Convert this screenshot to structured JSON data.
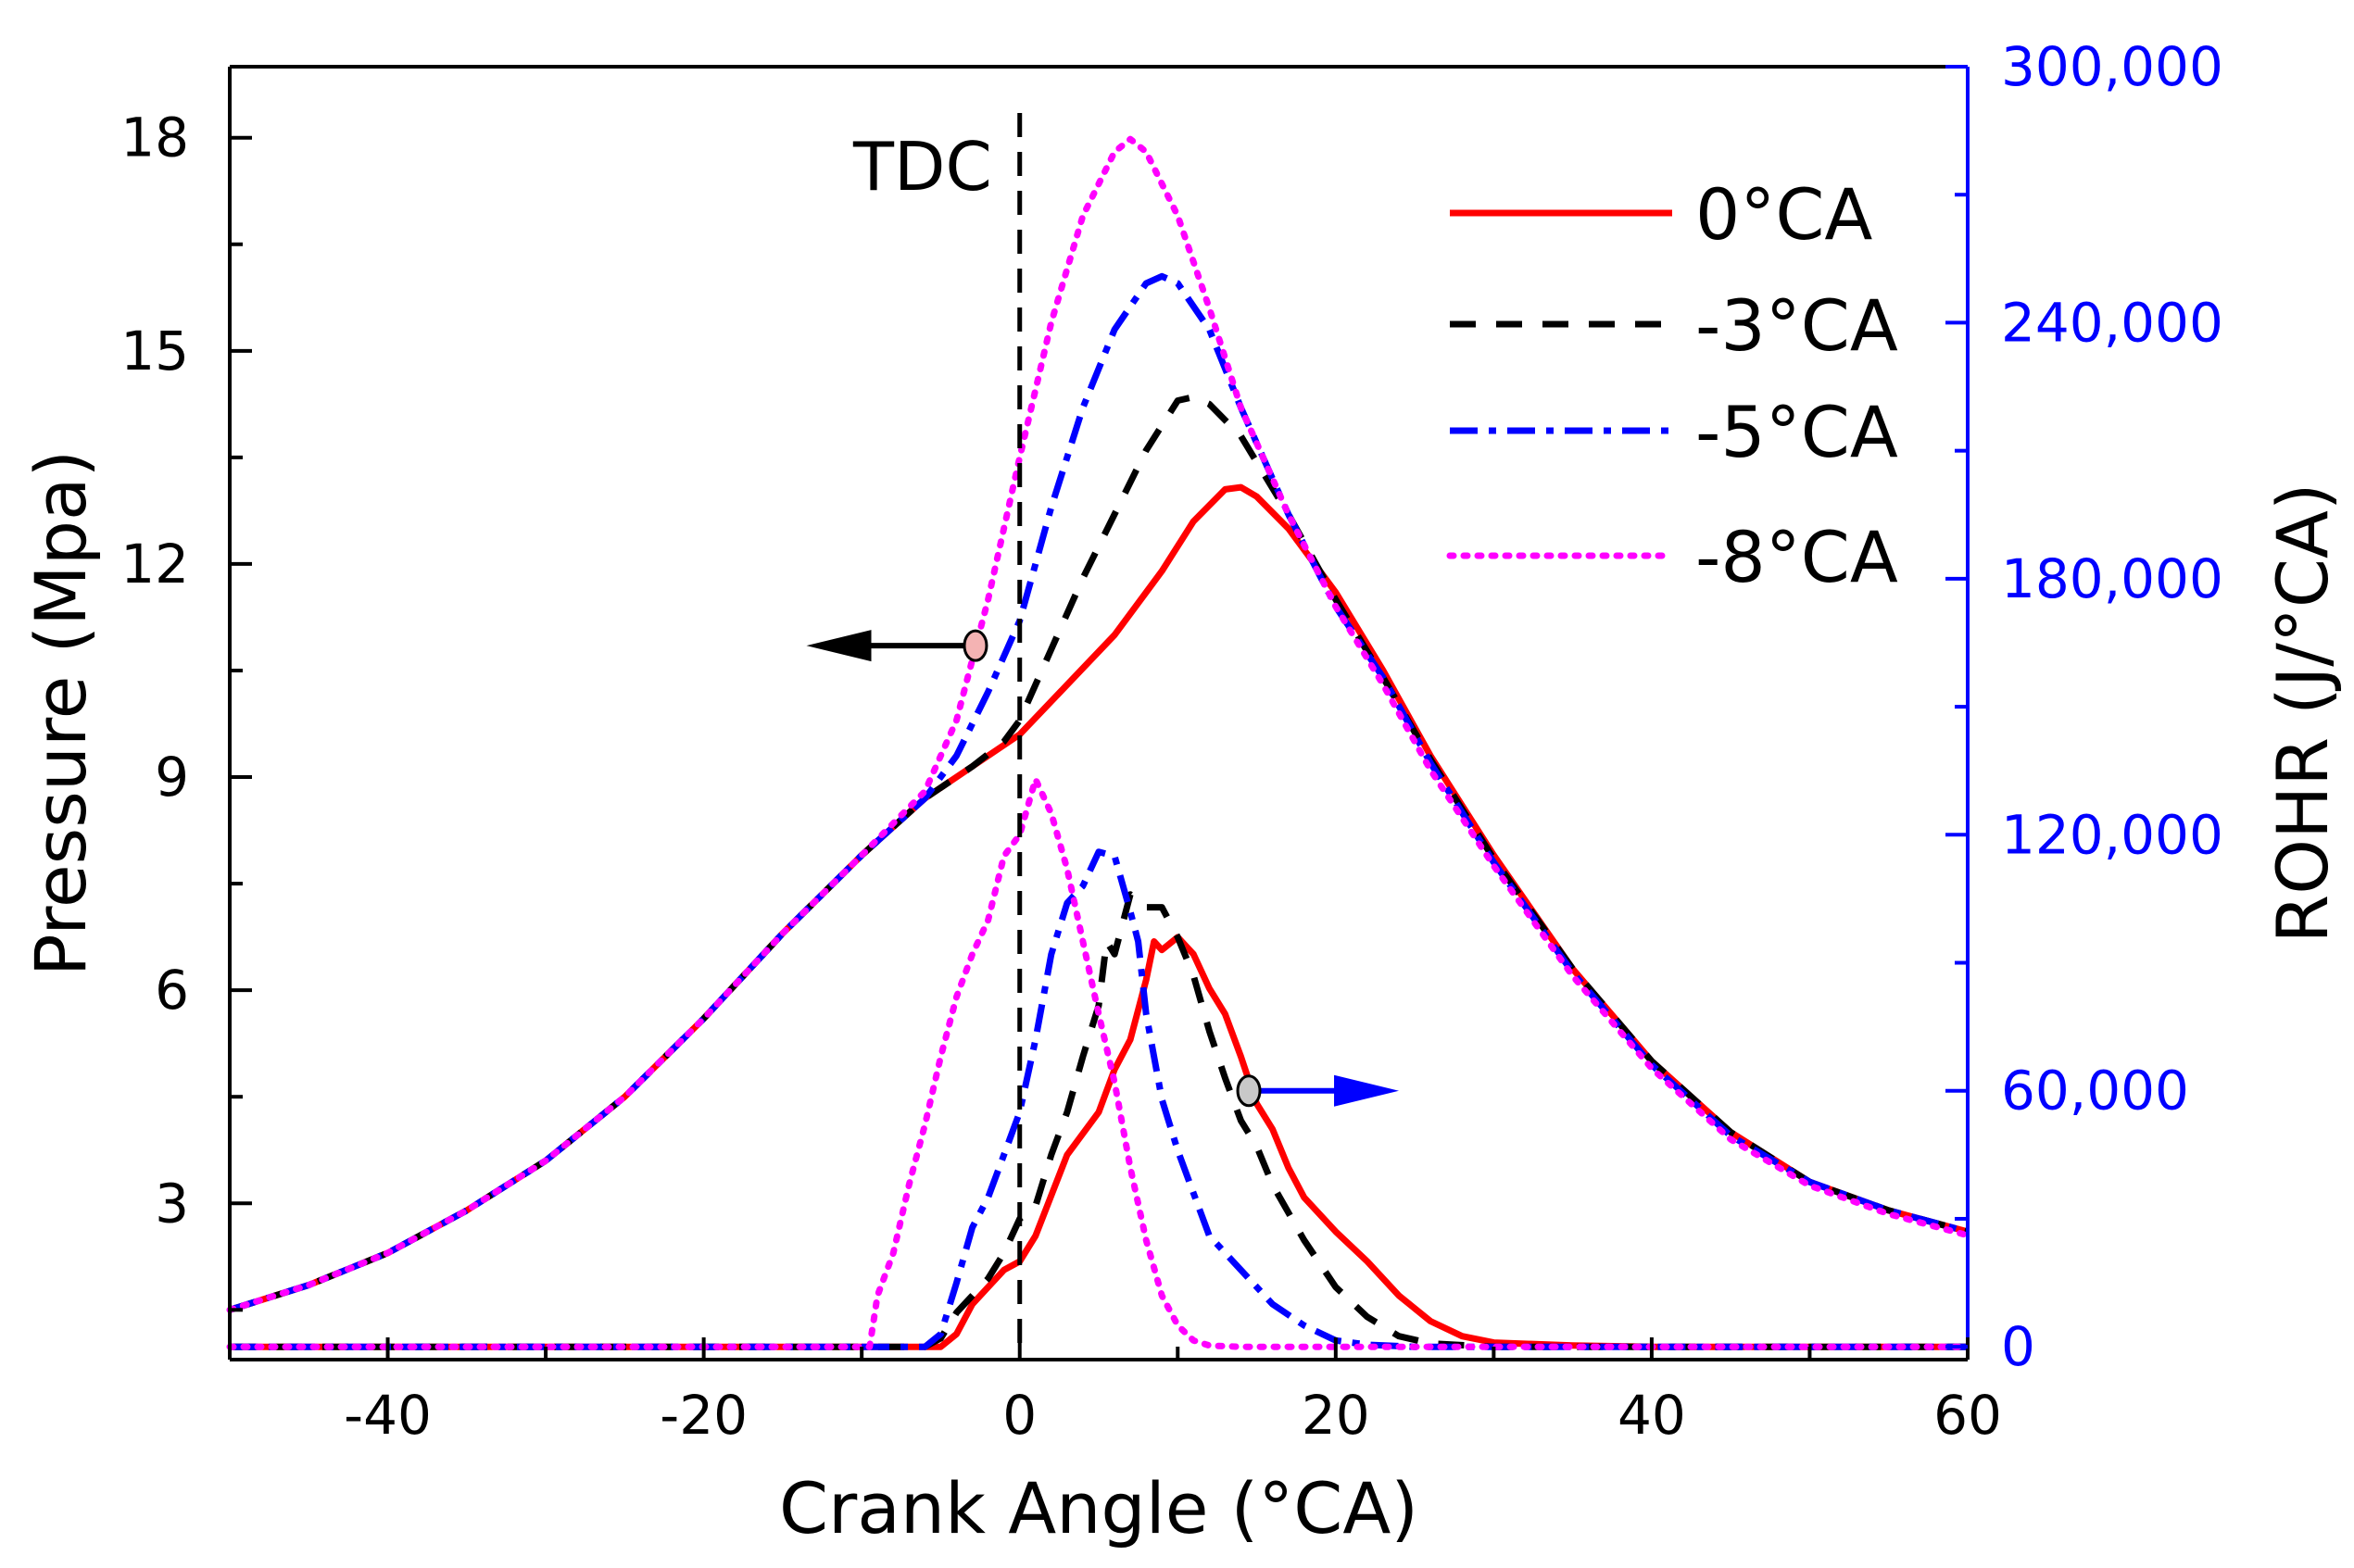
{
  "chart_data": {
    "type": "line",
    "xlabel": "Crank Angle (°CA)",
    "ylabel_left": "Pressure (Mpa)",
    "ylabel_right": "ROHR (J/°CA)",
    "xlim": [
      -50,
      60
    ],
    "ylim_left": [
      0.8,
      19
    ],
    "ylim_right": [
      -3000,
      300000
    ],
    "x_ticks": [
      -40,
      -20,
      0,
      20,
      40,
      60
    ],
    "y_left_ticks": [
      3,
      6,
      9,
      12,
      15,
      18
    ],
    "y_right_ticks": [
      0,
      60000,
      120000,
      180000,
      240000,
      300000
    ],
    "y_right_tick_labels": [
      "0",
      "60,000",
      "120,000",
      "180,000",
      "240,000",
      "300,000"
    ],
    "annotation_tdc": {
      "label": "TDC",
      "x": 0
    },
    "legend_position": "top-right",
    "colors": {
      "s0": "#ff0000",
      "s3": "#000000",
      "s5": "#0000ff",
      "s8": "#ff00ff",
      "right_axis": "#0000ff"
    },
    "series": [
      {
        "name": "0°CA",
        "style": "solid",
        "color": "#ff0000",
        "pressure": [
          [
            -50,
            1.5
          ],
          [
            -45,
            1.85
          ],
          [
            -40,
            2.3
          ],
          [
            -35,
            2.9
          ],
          [
            -30,
            3.6
          ],
          [
            -25,
            4.5
          ],
          [
            -20,
            5.6
          ],
          [
            -15,
            6.8
          ],
          [
            -10,
            7.9
          ],
          [
            -6,
            8.7
          ],
          [
            -3,
            9.15
          ],
          [
            0,
            9.6
          ],
          [
            3,
            10.3
          ],
          [
            6,
            11.0
          ],
          [
            9,
            11.9
          ],
          [
            11,
            12.6
          ],
          [
            13,
            13.05
          ],
          [
            14,
            13.08
          ],
          [
            15,
            12.95
          ],
          [
            17,
            12.5
          ],
          [
            20,
            11.6
          ],
          [
            23,
            10.5
          ],
          [
            26,
            9.3
          ],
          [
            30,
            7.9
          ],
          [
            35,
            6.3
          ],
          [
            40,
            5.0
          ],
          [
            45,
            4.0
          ],
          [
            50,
            3.3
          ],
          [
            55,
            2.9
          ],
          [
            60,
            2.6
          ]
        ],
        "rohr": [
          [
            -50,
            0
          ],
          [
            -5,
            0
          ],
          [
            -4,
            3000
          ],
          [
            -3,
            10000
          ],
          [
            -1,
            18000
          ],
          [
            0,
            20000
          ],
          [
            1,
            26000
          ],
          [
            3,
            45000
          ],
          [
            5,
            55000
          ],
          [
            6,
            65000
          ],
          [
            7,
            72000
          ],
          [
            8,
            86000
          ],
          [
            8.5,
            95000
          ],
          [
            9,
            93000
          ],
          [
            10,
            96000
          ],
          [
            11,
            92000
          ],
          [
            12,
            84000
          ],
          [
            13,
            78000
          ],
          [
            14,
            68000
          ],
          [
            15,
            57000
          ],
          [
            16,
            51000
          ],
          [
            17,
            42000
          ],
          [
            18,
            35000
          ],
          [
            20,
            27000
          ],
          [
            22,
            20000
          ],
          [
            24,
            12000
          ],
          [
            26,
            6000
          ],
          [
            28,
            2500
          ],
          [
            30,
            1000
          ],
          [
            35,
            300
          ],
          [
            40,
            0
          ],
          [
            60,
            0
          ]
        ]
      },
      {
        "name": "-3°CA",
        "style": "dashed",
        "color": "#000000",
        "pressure": [
          [
            -50,
            1.5
          ],
          [
            -45,
            1.85
          ],
          [
            -40,
            2.3
          ],
          [
            -35,
            2.9
          ],
          [
            -30,
            3.6
          ],
          [
            -25,
            4.5
          ],
          [
            -20,
            5.6
          ],
          [
            -15,
            6.8
          ],
          [
            -10,
            7.9
          ],
          [
            -6,
            8.7
          ],
          [
            -3,
            9.15
          ],
          [
            -1,
            9.5
          ],
          [
            0,
            9.8
          ],
          [
            2,
            10.8
          ],
          [
            4,
            11.8
          ],
          [
            6,
            12.7
          ],
          [
            8,
            13.6
          ],
          [
            10,
            14.3
          ],
          [
            11,
            14.35
          ],
          [
            12,
            14.25
          ],
          [
            14,
            13.8
          ],
          [
            17,
            12.7
          ],
          [
            20,
            11.5
          ],
          [
            23,
            10.4
          ],
          [
            26,
            9.25
          ],
          [
            30,
            7.85
          ],
          [
            35,
            6.3
          ],
          [
            40,
            5.0
          ],
          [
            45,
            4.0
          ],
          [
            50,
            3.3
          ],
          [
            55,
            2.9
          ],
          [
            60,
            2.6
          ]
        ],
        "rohr": [
          [
            -50,
            0
          ],
          [
            -6,
            0
          ],
          [
            -5,
            2000
          ],
          [
            -4,
            8000
          ],
          [
            -2,
            16000
          ],
          [
            -1,
            22000
          ],
          [
            0,
            30000
          ],
          [
            1,
            33000
          ],
          [
            2,
            45000
          ],
          [
            3,
            55000
          ],
          [
            4,
            68000
          ],
          [
            5,
            80000
          ],
          [
            5.5,
            95000
          ],
          [
            6,
            92000
          ],
          [
            7,
            106000
          ],
          [
            8,
            103000
          ],
          [
            9,
            103000
          ],
          [
            10,
            96000
          ],
          [
            11,
            87000
          ],
          [
            12,
            74000
          ],
          [
            13,
            63000
          ],
          [
            14,
            53000
          ],
          [
            15,
            47000
          ],
          [
            16,
            38000
          ],
          [
            18,
            25000
          ],
          [
            20,
            14000
          ],
          [
            22,
            7000
          ],
          [
            24,
            2500
          ],
          [
            26,
            800
          ],
          [
            30,
            0
          ],
          [
            60,
            0
          ]
        ]
      },
      {
        "name": "-5°CA",
        "style": "dashdot",
        "color": "#0000ff",
        "pressure": [
          [
            -50,
            1.5
          ],
          [
            -45,
            1.85
          ],
          [
            -40,
            2.3
          ],
          [
            -35,
            2.9
          ],
          [
            -30,
            3.6
          ],
          [
            -25,
            4.5
          ],
          [
            -20,
            5.6
          ],
          [
            -15,
            6.8
          ],
          [
            -10,
            7.9
          ],
          [
            -6,
            8.7
          ],
          [
            -4,
            9.3
          ],
          [
            -2,
            10.2
          ],
          [
            0,
            11.2
          ],
          [
            1,
            12.0
          ],
          [
            2,
            12.8
          ],
          [
            4,
            14.2
          ],
          [
            6,
            15.3
          ],
          [
            8,
            15.95
          ],
          [
            9,
            16.05
          ],
          [
            10,
            15.95
          ],
          [
            12,
            15.3
          ],
          [
            14,
            14.2
          ],
          [
            17,
            12.7
          ],
          [
            20,
            11.4
          ],
          [
            23,
            10.4
          ],
          [
            26,
            9.2
          ],
          [
            30,
            7.8
          ],
          [
            35,
            6.25
          ],
          [
            40,
            4.95
          ],
          [
            45,
            3.95
          ],
          [
            50,
            3.3
          ],
          [
            55,
            2.9
          ],
          [
            60,
            2.6
          ]
        ],
        "rohr": [
          [
            -50,
            0
          ],
          [
            -6,
            0
          ],
          [
            -5,
            3000
          ],
          [
            -4,
            15000
          ],
          [
            -3,
            28000
          ],
          [
            -2,
            35000
          ],
          [
            -1,
            45000
          ],
          [
            0,
            55000
          ],
          [
            1,
            72000
          ],
          [
            2,
            92000
          ],
          [
            3,
            104000
          ],
          [
            4,
            108000
          ],
          [
            5,
            116000
          ],
          [
            6,
            115000
          ],
          [
            7,
            102000
          ],
          [
            7.5,
            95000
          ],
          [
            8,
            78000
          ],
          [
            9,
            58000
          ],
          [
            10,
            46000
          ],
          [
            11,
            36000
          ],
          [
            12,
            26000
          ],
          [
            14,
            18000
          ],
          [
            16,
            10000
          ],
          [
            18,
            5000
          ],
          [
            20,
            1500
          ],
          [
            22,
            500
          ],
          [
            25,
            0
          ],
          [
            60,
            0
          ]
        ]
      },
      {
        "name": "-8°CA",
        "style": "dotted",
        "color": "#ff00ff",
        "pressure": [
          [
            -50,
            1.5
          ],
          [
            -45,
            1.85
          ],
          [
            -40,
            2.3
          ],
          [
            -35,
            2.9
          ],
          [
            -30,
            3.6
          ],
          [
            -25,
            4.5
          ],
          [
            -20,
            5.6
          ],
          [
            -15,
            6.8
          ],
          [
            -10,
            7.9
          ],
          [
            -6,
            8.8
          ],
          [
            -4,
            9.8
          ],
          [
            -2,
            11.5
          ],
          [
            0,
            13.5
          ],
          [
            2,
            15.4
          ],
          [
            4,
            16.9
          ],
          [
            6,
            17.8
          ],
          [
            7,
            17.98
          ],
          [
            8,
            17.8
          ],
          [
            10,
            16.9
          ],
          [
            12,
            15.6
          ],
          [
            14,
            14.2
          ],
          [
            17,
            12.7
          ],
          [
            20,
            11.4
          ],
          [
            23,
            10.3
          ],
          [
            26,
            9.1
          ],
          [
            30,
            7.75
          ],
          [
            35,
            6.2
          ],
          [
            40,
            4.9
          ],
          [
            45,
            3.9
          ],
          [
            50,
            3.25
          ],
          [
            55,
            2.85
          ],
          [
            60,
            2.55
          ]
        ],
        "rohr": [
          [
            -50,
            0
          ],
          [
            -9.5,
            0
          ],
          [
            -9,
            12000
          ],
          [
            -8,
            22000
          ],
          [
            -7,
            38000
          ],
          [
            -6,
            52000
          ],
          [
            -5,
            68000
          ],
          [
            -4,
            82000
          ],
          [
            -3,
            92000
          ],
          [
            -2,
            100000
          ],
          [
            -1,
            115000
          ],
          [
            0,
            120000
          ],
          [
            1,
            133000
          ],
          [
            2,
            125000
          ],
          [
            3,
            112000
          ],
          [
            4,
            95000
          ],
          [
            5,
            78000
          ],
          [
            6,
            62000
          ],
          [
            7,
            42000
          ],
          [
            8,
            25000
          ],
          [
            9,
            12000
          ],
          [
            10,
            5000
          ],
          [
            11,
            1500
          ],
          [
            12,
            300
          ],
          [
            14,
            0
          ],
          [
            60,
            0
          ]
        ]
      }
    ],
    "arrow_left": {
      "from_x": -2.8,
      "from_y_left": 10.85,
      "to_x": -13.5,
      "color": "#000000"
    },
    "arrow_right": {
      "from_x": 14.5,
      "from_y_right": 60000,
      "to_x": 24,
      "color": "#0000ff"
    }
  }
}
